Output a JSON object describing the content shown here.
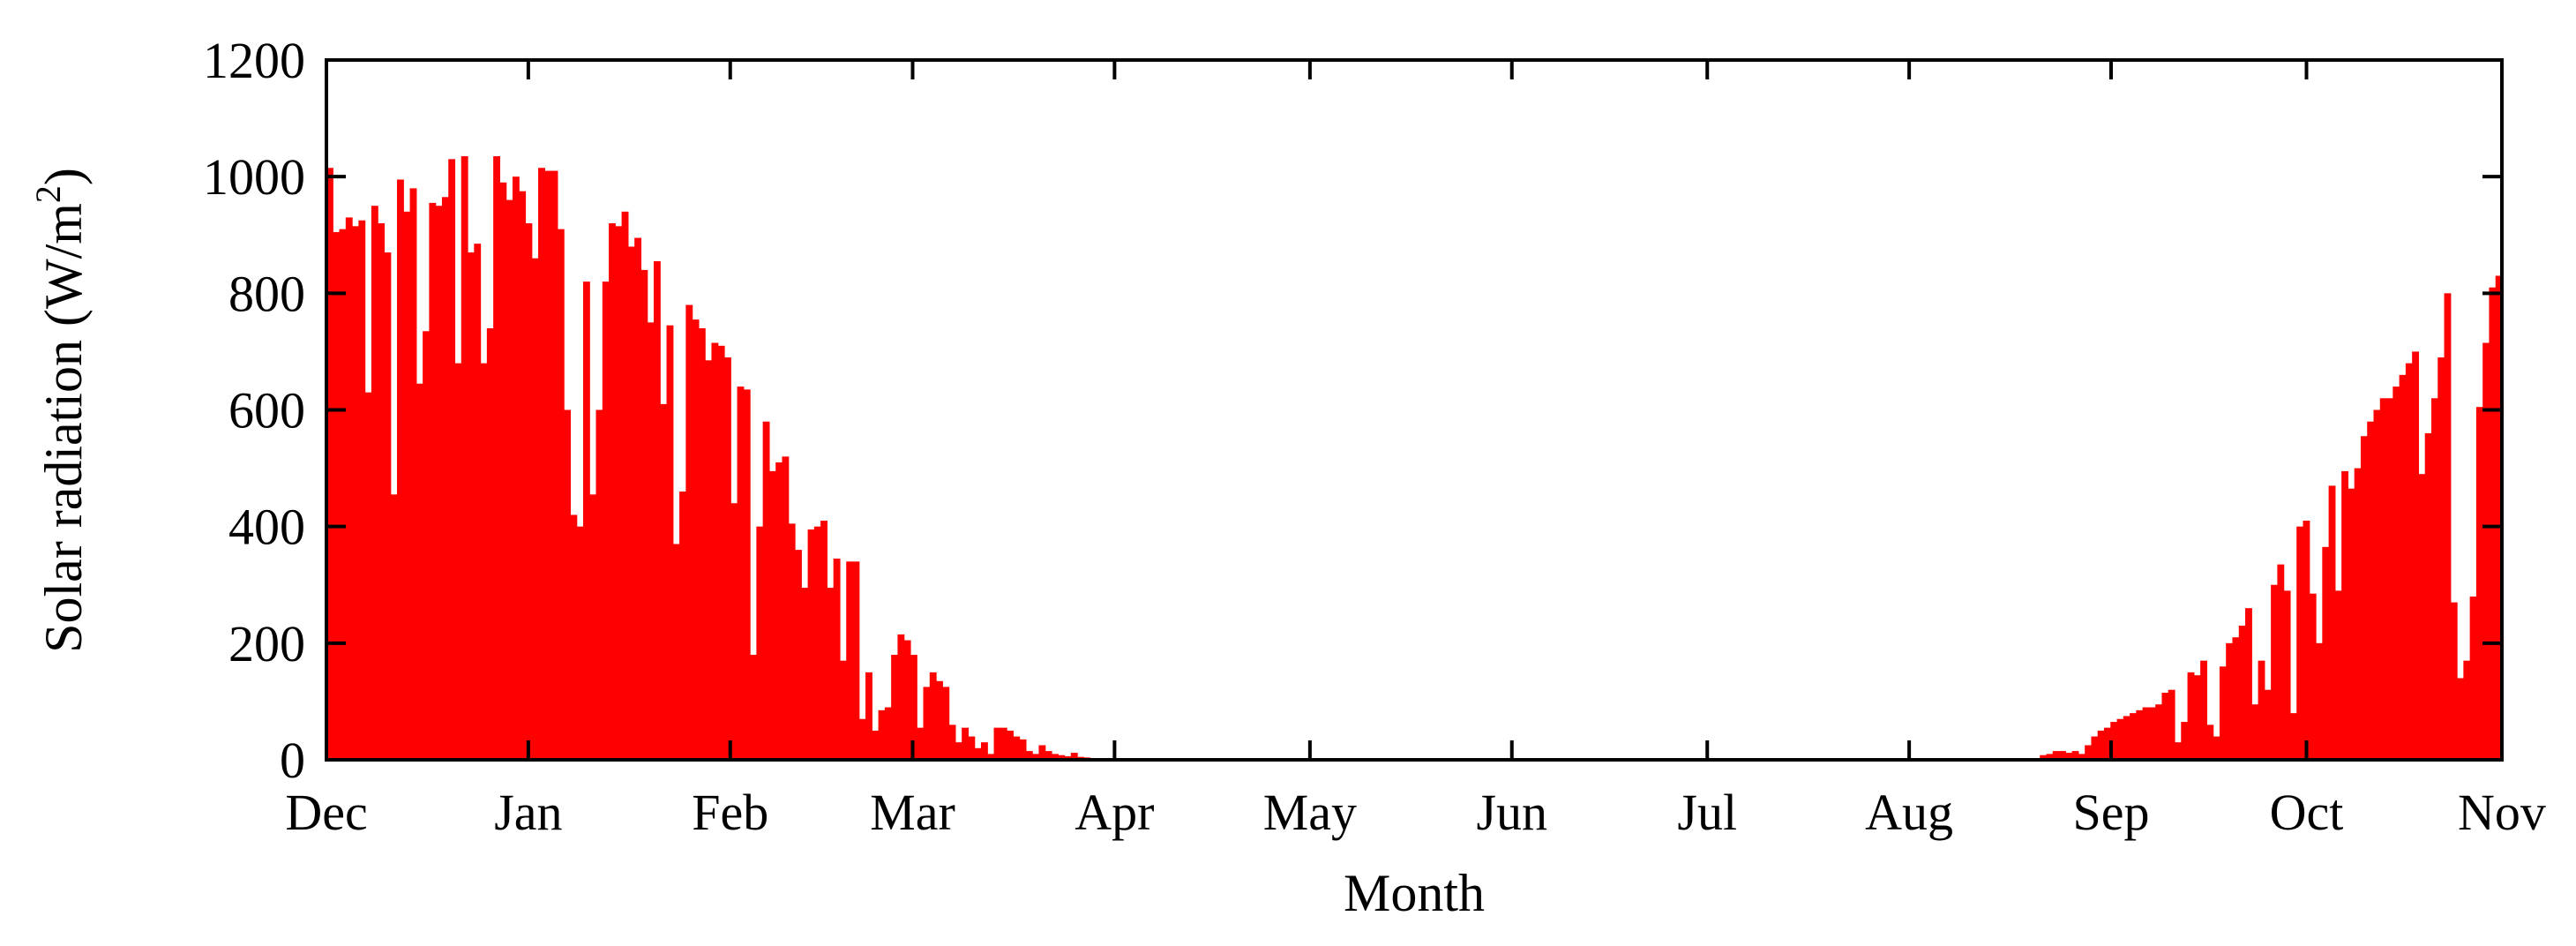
{
  "chart_data": {
    "type": "bar",
    "xlabel": "Month",
    "ylabel": "Solar radiation (W/m",
    "ylabel_superscript": "2",
    "ylabel_suffix": ")",
    "ylim": [
      0,
      1200
    ],
    "yticks": [
      0,
      200,
      400,
      600,
      800,
      1000,
      1200
    ],
    "x_day_range": [
      0,
      334
    ],
    "month_ticks": [
      {
        "label": "Dec",
        "day": 0
      },
      {
        "label": "Jan",
        "day": 31
      },
      {
        "label": "Feb",
        "day": 62
      },
      {
        "label": "Mar",
        "day": 90
      },
      {
        "label": "Apr",
        "day": 121
      },
      {
        "label": "May",
        "day": 151
      },
      {
        "label": "Jun",
        "day": 182
      },
      {
        "label": "Jul",
        "day": 212
      },
      {
        "label": "Aug",
        "day": 243
      },
      {
        "label": "Sep",
        "day": 274
      },
      {
        "label": "Oct",
        "day": 304
      },
      {
        "label": "Nov",
        "day": 334
      }
    ],
    "bar_color": "#ff0000",
    "grid": false,
    "values": [
      1015,
      905,
      910,
      930,
      915,
      925,
      630,
      950,
      920,
      870,
      455,
      995,
      940,
      980,
      645,
      735,
      955,
      950,
      965,
      1030,
      680,
      1035,
      870,
      885,
      680,
      740,
      1035,
      990,
      960,
      1000,
      975,
      920,
      860,
      1015,
      1010,
      1010,
      910,
      600,
      420,
      400,
      820,
      455,
      600,
      820,
      920,
      915,
      940,
      880,
      895,
      840,
      750,
      855,
      610,
      745,
      370,
      460,
      780,
      755,
      740,
      685,
      715,
      710,
      690,
      440,
      640,
      635,
      180,
      400,
      580,
      495,
      510,
      520,
      405,
      360,
      295,
      395,
      400,
      410,
      295,
      345,
      170,
      340,
      340,
      70,
      150,
      50,
      85,
      90,
      180,
      215,
      205,
      180,
      55,
      125,
      150,
      135,
      125,
      60,
      30,
      55,
      40,
      20,
      30,
      10,
      55,
      55,
      50,
      40,
      35,
      15,
      10,
      25,
      15,
      10,
      8,
      6,
      12,
      5,
      4,
      3,
      3,
      2,
      2,
      2,
      2,
      2,
      2,
      2,
      2,
      2,
      2,
      2,
      2,
      2,
      2,
      2,
      2,
      2,
      2,
      2,
      2,
      2,
      2,
      2,
      2,
      2,
      2,
      2,
      2,
      2,
      2,
      2,
      2,
      2,
      2,
      2,
      2,
      2,
      2,
      2,
      2,
      2,
      2,
      2,
      2,
      2,
      2,
      2,
      2,
      2,
      2,
      2,
      2,
      2,
      2,
      2,
      2,
      2,
      2,
      2,
      2,
      2,
      2,
      2,
      2,
      2,
      2,
      2,
      2,
      2,
      2,
      2,
      2,
      2,
      2,
      2,
      2,
      2,
      2,
      2,
      2,
      2,
      2,
      2,
      2,
      2,
      2,
      2,
      2,
      2,
      2,
      2,
      2,
      2,
      2,
      2,
      2,
      2,
      2,
      2,
      2,
      2,
      2,
      2,
      2,
      2,
      2,
      2,
      2,
      2,
      2,
      2,
      2,
      2,
      2,
      2,
      2,
      2,
      2,
      2,
      2,
      2,
      2,
      2,
      2,
      2,
      2,
      2,
      2,
      2,
      2,
      2,
      2,
      2,
      2,
      2,
      2,
      2,
      2,
      2,
      2,
      2,
      2,
      2,
      2,
      2,
      3,
      8,
      10,
      15,
      15,
      12,
      15,
      10,
      25,
      40,
      50,
      55,
      65,
      70,
      75,
      80,
      85,
      90,
      90,
      95,
      115,
      120,
      30,
      65,
      150,
      145,
      170,
      60,
      40,
      160,
      200,
      210,
      230,
      260,
      95,
      170,
      120,
      300,
      335,
      290,
      80,
      400,
      410,
      285,
      200,
      365,
      470,
      290,
      495,
      465,
      500,
      555,
      580,
      600,
      620,
      620,
      640,
      660,
      680,
      700,
      490,
      560,
      620,
      690,
      800,
      270,
      140,
      170,
      280,
      605,
      715,
      810,
      830
    ]
  }
}
